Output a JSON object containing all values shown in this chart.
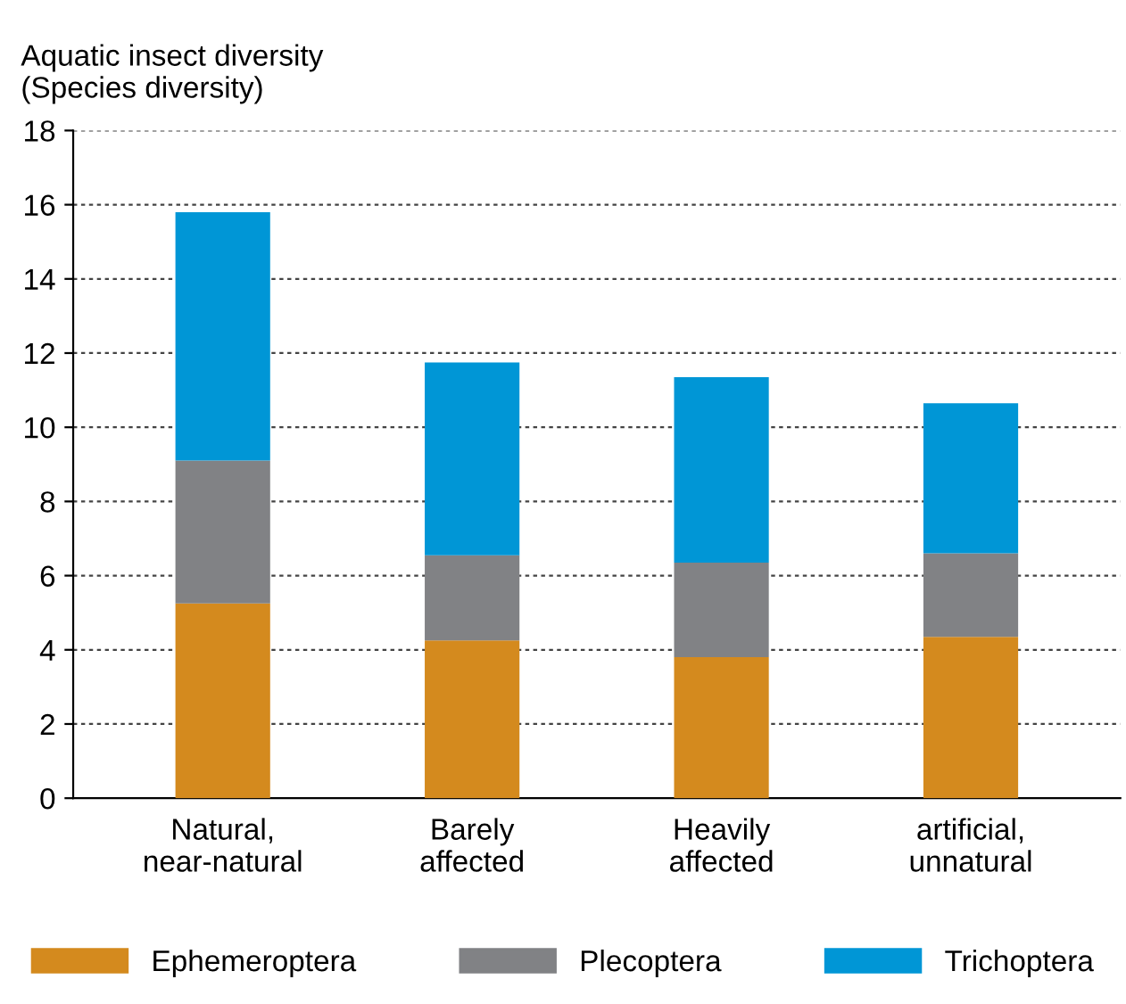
{
  "chart_data": {
    "type": "bar",
    "stacked": true,
    "ylabel": "Aquatic insect diversity\n(Species diversity)",
    "categories": [
      "Natural,\nnear-natural",
      "Barely\naffected",
      "Heavily\naffected",
      "artificial,\nunnatural"
    ],
    "series": [
      {
        "name": "Ephemeroptera",
        "color": "#d48a1e",
        "values": [
          5.25,
          4.25,
          3.8,
          4.35
        ]
      },
      {
        "name": "Plecoptera",
        "color": "#818285",
        "values": [
          3.85,
          2.3,
          2.55,
          2.25
        ]
      },
      {
        "name": "Trichoptera",
        "color": "#0096d6",
        "values": [
          6.7,
          5.2,
          5.0,
          4.05
        ]
      }
    ],
    "ylim": [
      0,
      18
    ],
    "yticks": [
      0,
      2,
      4,
      6,
      8,
      10,
      12,
      14,
      16,
      18
    ],
    "grid": "y",
    "legend": "bottom"
  }
}
